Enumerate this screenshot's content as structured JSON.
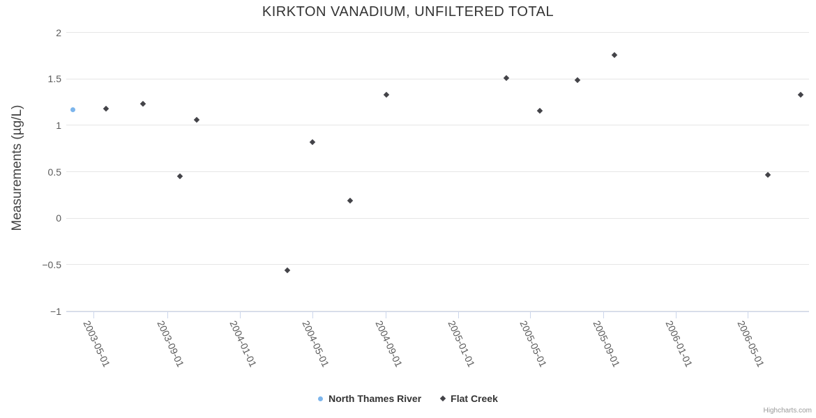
{
  "title": "KIRKTON VANADIUM, UNFILTERED TOTAL",
  "credits_label": "Highcharts.com",
  "chart_data": {
    "type": "scatter",
    "title": "KIRKTON VANADIUM, UNFILTERED TOTAL",
    "xlabel": "",
    "ylabel": "Measurements (µg/L)",
    "ylim": [
      -1,
      2
    ],
    "grid": "horizontal",
    "legend_position": "bottom-center",
    "y_ticks": [
      2,
      1.5,
      1,
      0.5,
      0,
      -0.5,
      -1
    ],
    "x_ticks": [
      "2003-05-01",
      "2003-09-01",
      "2004-01-01",
      "2004-05-01",
      "2004-09-01",
      "2005-01-01",
      "2005-05-01",
      "2005-09-01",
      "2006-01-01",
      "2006-05-01"
    ],
    "series": [
      {
        "name": "North Thames River",
        "color": "#7cb5ec",
        "marker": "circle",
        "points": [
          {
            "date": "2003-03-27",
            "value": 1.17
          }
        ]
      },
      {
        "name": "Flat Creek",
        "color": "#434348",
        "marker": "diamond",
        "points": [
          {
            "date": "2003-05-21",
            "value": 1.18
          },
          {
            "date": "2003-07-22",
            "value": 1.23
          },
          {
            "date": "2003-09-22",
            "value": 0.45
          },
          {
            "date": "2003-10-20",
            "value": 1.06
          },
          {
            "date": "2004-03-20",
            "value": -0.56
          },
          {
            "date": "2004-05-01",
            "value": 0.82
          },
          {
            "date": "2004-07-04",
            "value": 0.19
          },
          {
            "date": "2004-09-03",
            "value": 1.33
          },
          {
            "date": "2005-03-23",
            "value": 1.51
          },
          {
            "date": "2005-05-18",
            "value": 1.16
          },
          {
            "date": "2005-07-20",
            "value": 1.49
          },
          {
            "date": "2005-09-20",
            "value": 1.76
          },
          {
            "date": "2006-06-04",
            "value": 0.47
          },
          {
            "date": "2006-07-29",
            "value": 1.33
          }
        ]
      }
    ]
  }
}
